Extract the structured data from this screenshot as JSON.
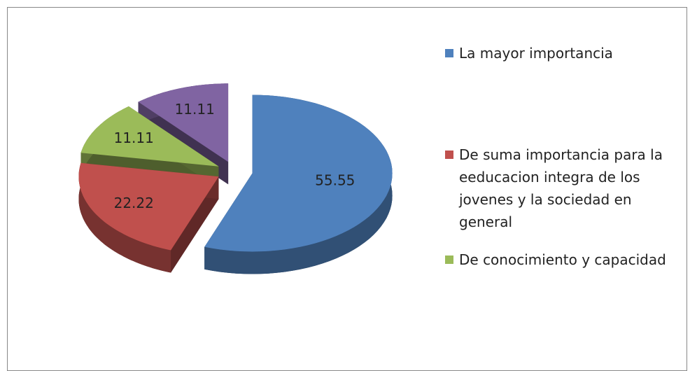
{
  "chart_data": {
    "type": "pie",
    "categories": [
      "La mayor importancia",
      "De suma importancia para la eeducacion integra de los jovenes y la sociedad en general",
      "De conocimiento y capacidad",
      null
    ],
    "values": [
      55.55,
      22.22,
      11.11,
      11.11
    ],
    "colors": [
      "#4f81bd",
      "#c0504d",
      "#9bbb59",
      "#8064a2"
    ],
    "legend": "right"
  }
}
